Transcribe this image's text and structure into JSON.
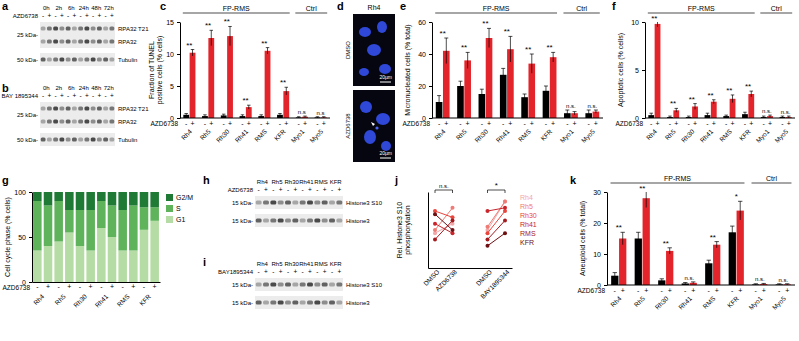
{
  "chart_data": [
    {
      "panel": "c",
      "type": "bar",
      "y_label": "Fraction of TUNEL positive cells (% cells)",
      "treatment": "AZD6738",
      "categories": [
        "Rh4",
        "Rh5",
        "Rh30",
        "Rh41",
        "RMS",
        "KFR",
        "Myo1",
        "Myo5"
      ],
      "groups": [
        {
          "label": "FP-RMS",
          "categories": [
            "Rh4",
            "Rh5",
            "Rh30",
            "Rh41",
            "RMS",
            "KFR"
          ]
        },
        {
          "label": "Ctrl",
          "categories": [
            "Myo1",
            "Myo5"
          ]
        }
      ],
      "series": [
        {
          "name": "-",
          "color": "#000000",
          "values": [
            0.5,
            0.3,
            0.4,
            0.3,
            0.3,
            0.5,
            0.1,
            0.1
          ],
          "errors": [
            0.2,
            0.2,
            0.2,
            0.2,
            0.2,
            0.2,
            0.1,
            0.1
          ]
        },
        {
          "name": "+",
          "color": "#e3242b",
          "values": [
            10.2,
            12.5,
            12.8,
            1.7,
            10.5,
            4.2,
            0.2,
            0.1
          ],
          "errors": [
            0.5,
            1.2,
            1.5,
            0.3,
            0.5,
            0.6,
            0.1,
            0.1
          ]
        }
      ],
      "significance": [
        "**",
        "**",
        "**",
        "**",
        "**",
        "**",
        "n.s",
        "n.s"
      ],
      "ylim": [
        0,
        15
      ],
      "yticks": [
        0,
        5,
        10,
        15
      ]
    },
    {
      "panel": "e",
      "type": "bar",
      "y_label": "Micronucleated cells (% total)",
      "treatment": "AZD6738",
      "categories": [
        "Rh4",
        "Rh5",
        "Rh30",
        "Rh41",
        "RMS",
        "KFR",
        "Myo1",
        "Myo5"
      ],
      "groups": [
        {
          "label": "FP-RMS",
          "categories": [
            "Rh4",
            "Rh5",
            "Rh30",
            "Rh41",
            "RMS",
            "KFR"
          ]
        },
        {
          "label": "Ctrl",
          "categories": [
            "Myo1",
            "Myo5"
          ]
        }
      ],
      "series": [
        {
          "name": "-",
          "color": "#000000",
          "values": [
            10,
            20,
            15,
            27,
            13,
            17,
            3,
            3
          ],
          "errors": [
            4,
            3,
            3,
            4,
            2,
            3,
            2,
            2
          ]
        },
        {
          "name": "+",
          "color": "#e3242b",
          "values": [
            42,
            36,
            50,
            43,
            34,
            38,
            3,
            4
          ],
          "errors": [
            8,
            5,
            6,
            8,
            6,
            3,
            1,
            1
          ]
        }
      ],
      "significance": [
        "**",
        "**",
        "**",
        "**",
        "**",
        "**",
        "n.s.",
        "n.s."
      ],
      "ylim": [
        0,
        60
      ],
      "yticks": [
        0,
        20,
        40,
        60
      ]
    },
    {
      "panel": "f",
      "type": "bar",
      "y_label": "Apoptotic cells (% cells)",
      "treatment": "AZD6738",
      "categories": [
        "Rh4",
        "Rh5",
        "Rh30",
        "Rh41",
        "RMS",
        "KFR",
        "Myo1",
        "Myo5"
      ],
      "groups": [
        {
          "label": "FP-RMS",
          "categories": [
            "Rh4",
            "Rh5",
            "Rh30",
            "Rh41",
            "RMS",
            "KFR"
          ]
        },
        {
          "label": "Ctrl",
          "categories": [
            "Myo1",
            "Myo5"
          ]
        }
      ],
      "series": [
        {
          "name": "-",
          "color": "#000000",
          "values": [
            0.3,
            0.1,
            0.1,
            0.3,
            0.2,
            0.4,
            0.1,
            0.1
          ],
          "errors": [
            0.2,
            0.1,
            0.1,
            0.2,
            0.1,
            0.2,
            0.1,
            0.1
          ]
        },
        {
          "name": "+",
          "color": "#e3242b",
          "values": [
            9.8,
            0.8,
            1.2,
            1.7,
            2.0,
            2.5,
            0.2,
            0.1
          ],
          "errors": [
            0.3,
            0.2,
            0.3,
            0.2,
            0.4,
            0.3,
            0.1,
            0.1
          ]
        }
      ],
      "significance": [
        "**",
        "**",
        "**",
        "**",
        "**",
        "**",
        "n.s.",
        "n.s."
      ],
      "ylim": [
        0,
        10
      ],
      "yticks": [
        0,
        5,
        10
      ]
    },
    {
      "panel": "g",
      "type": "bar",
      "stacked": true,
      "y_label": "Cell cycle phase (% cells)",
      "treatment": "AZD6738",
      "categories": [
        "-",
        "+",
        "-",
        "+",
        "-",
        "+",
        "-",
        "+",
        "-",
        "+",
        "-",
        "+"
      ],
      "cell_lines": [
        "Rh4",
        "Rh5",
        "Rh30",
        "Rh41",
        "RMS",
        "KFR"
      ],
      "series": [
        {
          "name": "G1",
          "color": "#b5dca5",
          "values": [
            35,
            40,
            45,
            55,
            40,
            35,
            60,
            50,
            35,
            35,
            58,
            68
          ]
        },
        {
          "name": "S",
          "color": "#5fb35a",
          "values": [
            55,
            45,
            45,
            25,
            40,
            45,
            30,
            35,
            45,
            50,
            25,
            15
          ]
        },
        {
          "name": "G2/M",
          "color": "#1f7a35",
          "values": [
            10,
            15,
            10,
            20,
            20,
            20,
            10,
            15,
            20,
            15,
            17,
            17
          ]
        }
      ],
      "legend": "right",
      "ylim": [
        0,
        100
      ],
      "yticks": [
        0,
        50,
        100
      ]
    },
    {
      "panel": "j",
      "type": "line",
      "y_label": "Rel. Histone3 S10 phosphorylation",
      "categories": [
        "DMSO",
        "AZD6738",
        null,
        "DMSO",
        "BAY1895344"
      ],
      "series": [
        {
          "name": "Rh4",
          "color": "#f2a7a9",
          "values": [
            0.55,
            0.7,
            null,
            0.6,
            1.05
          ]
        },
        {
          "name": "Rh5",
          "color": "#ee7b74",
          "values": [
            0.6,
            0.95,
            null,
            0.65,
            1.05
          ]
        },
        {
          "name": "Rh30",
          "color": "#e8453c",
          "values": [
            0.9,
            0.8,
            null,
            0.55,
            0.9
          ]
        },
        {
          "name": "Rh41",
          "color": "#c9252b",
          "values": [
            0.7,
            0.55,
            null,
            0.9,
            0.95
          ]
        },
        {
          "name": "RMS",
          "color": "#a31a1f",
          "values": [
            0.45,
            0.75,
            null,
            0.45,
            0.75
          ]
        },
        {
          "name": "KFR",
          "color": "#6e0f12",
          "values": [
            0.85,
            0.6,
            null,
            0.35,
            0.55
          ]
        }
      ],
      "significance": [
        "n.s.",
        "*"
      ],
      "marker": "circle",
      "line_style": "solid",
      "legend": "right",
      "tick_labels": "x",
      "ylim": [
        0,
        1.2
      ]
    },
    {
      "panel": "k",
      "type": "bar",
      "y_label": "Aneuploid cells (% total)",
      "treatment": "AZD6738",
      "categories": [
        "Rh4",
        "Rh5",
        "Rh30",
        "Rh41",
        "RMS",
        "KFR",
        "Myo1",
        "Myo5"
      ],
      "groups": [
        {
          "label": "FP-RMS",
          "categories": [
            "Rh4",
            "Rh5",
            "Rh30",
            "Rh41",
            "RMS",
            "KFR"
          ]
        },
        {
          "label": "Ctrl",
          "categories": [
            "Myo1",
            "Myo5"
          ]
        }
      ],
      "series": [
        {
          "name": "-",
          "color": "#000000",
          "values": [
            3,
            15,
            1.5,
            0.5,
            7,
            17,
            0.2,
            0.2
          ],
          "errors": [
            1,
            2,
            0.5,
            0.3,
            1,
            2,
            0.2,
            0.2
          ]
        },
        {
          "name": "+",
          "color": "#e3242b",
          "values": [
            15,
            28,
            11,
            0.7,
            13,
            24,
            0.3,
            0.2
          ],
          "errors": [
            2,
            3,
            1,
            0.3,
            1,
            3,
            0.2,
            0.2
          ]
        }
      ],
      "significance": [
        "**",
        "**",
        "**",
        "n.s.",
        "**",
        "*",
        "n.s.",
        "n.s."
      ],
      "ylim": [
        0,
        30
      ],
      "yticks": [
        0,
        10,
        20,
        30
      ]
    }
  ],
  "blots": [
    {
      "panel": "a",
      "treatment": "AZD6738",
      "lanes": [
        "0h",
        "2h",
        "6h",
        "24h",
        "48h",
        "72h"
      ],
      "signs": [
        "-",
        "+"
      ],
      "rows": [
        {
          "labels": [
            "RPA32 T21",
            "RPA32"
          ],
          "marker": "25 kDa-"
        },
        {
          "labels": [
            "Tubulin"
          ],
          "marker": "50 kDa-"
        }
      ]
    },
    {
      "panel": "b",
      "treatment": "BAY 1895344",
      "lanes": [
        "0h",
        "2h",
        "6h",
        "24h",
        "48h",
        "72h"
      ],
      "signs": [
        "-",
        "+"
      ],
      "rows": [
        {
          "labels": [
            "RPA32 T21",
            "RPA32"
          ],
          "marker": "25 kDa-"
        },
        {
          "labels": [
            "Tubulin"
          ],
          "marker": "50 kDa-"
        }
      ]
    },
    {
      "panel": "h",
      "treatment": "AZD6738",
      "lanes": [
        "Rh4",
        "Rh5",
        "Rh30",
        "Rh41",
        "RMS",
        "KFR"
      ],
      "signs": [
        "-",
        "+"
      ],
      "rows": [
        {
          "labels": [
            "Histone3 S10"
          ],
          "marker": "15 kDa-"
        },
        {
          "labels": [
            "Histone3"
          ],
          "marker": "15 kDa-"
        }
      ]
    },
    {
      "panel": "i",
      "treatment": "BAY1895344",
      "lanes": [
        "Rh4",
        "Rh5",
        "Rh30",
        "Rh41",
        "RMS",
        "KFR"
      ],
      "signs": [
        "-",
        "+"
      ],
      "rows": [
        {
          "labels": [
            "Histone3 S10"
          ],
          "marker": "15 kDa-"
        },
        {
          "labels": [
            "Histone3"
          ],
          "marker": "15 kDa-"
        }
      ]
    }
  ],
  "micrograph": {
    "panel": "d",
    "title": "Rh4",
    "conditions": [
      "DMSO",
      "AZD6738"
    ],
    "scale_bar": "20µm"
  }
}
